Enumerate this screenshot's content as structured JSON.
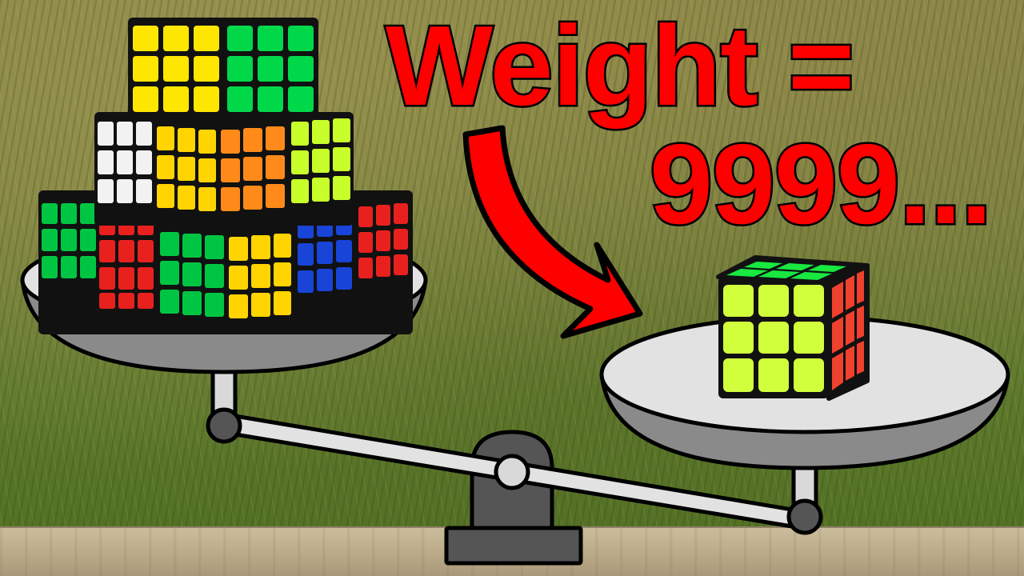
{
  "headline": {
    "line1": "Weight =",
    "line2": "9999..."
  },
  "colors": {
    "text_fill": "#ff0000",
    "text_outline": "#000000",
    "arrow": "#ff0000",
    "scale_gray": "#d9d9d9",
    "scale_dark": "#555555",
    "cube_yellow": "#ffe600",
    "cube_green": "#00d84a",
    "cube_red": "#e8201e",
    "cube_blue": "#1844d8",
    "cube_orange": "#ff8a1a",
    "cube_white": "#f2f2f2",
    "cube_lime": "#c8ff2a"
  },
  "objects": {
    "left_pan": "stack of rubiks cubes",
    "right_pan": "single 3x3 rubiks cube",
    "arrow": "curved arrow pointing at single cube"
  }
}
